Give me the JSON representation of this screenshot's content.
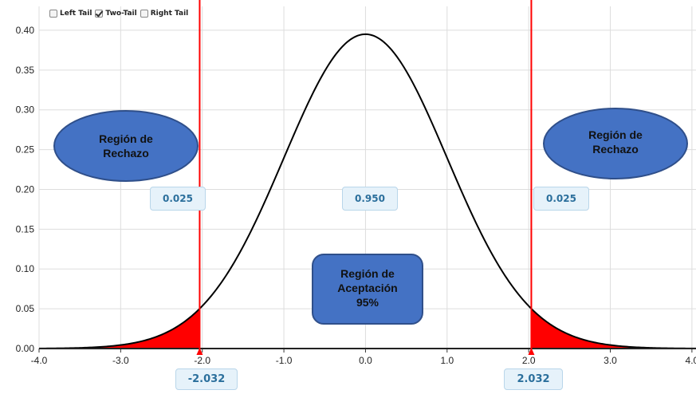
{
  "tail_options": [
    {
      "label": "Left Tail",
      "checked": false
    },
    {
      "label": "Two-Tail",
      "checked": true
    },
    {
      "label": "Right Tail",
      "checked": false
    }
  ],
  "chart_data": {
    "type": "area",
    "distribution": "standard normal (t-like) density",
    "x_ticks": [
      "-4.0",
      "-3.0",
      "-2.0",
      "-1.0",
      "0.0",
      "1.0",
      "2.0",
      "3.0",
      "4.0"
    ],
    "y_ticks": [
      "0.00",
      "0.05",
      "0.10",
      "0.15",
      "0.20",
      "0.25",
      "0.30",
      "0.35",
      "0.40"
    ],
    "xlim": [
      -4.0,
      4.05
    ],
    "ylim": [
      0,
      0.43
    ],
    "peak_value": 0.395,
    "critical_values": [
      -2.032,
      2.032
    ],
    "critical_labels": [
      "-2.032",
      "2.032"
    ],
    "area_labels": {
      "left_tail": "0.025",
      "center": "0.950",
      "right_tail": "0.025"
    },
    "grid": true,
    "colors": {
      "curve": "#000000",
      "tails": "#ff0000",
      "critical_line": "#ff0000",
      "grid": "#dddddd",
      "region_fill": "#4472c4",
      "region_border": "#2f4f8a"
    }
  },
  "regions": {
    "reject_left": [
      "Región de",
      "Rechazo"
    ],
    "reject_right": [
      "Región de",
      "Rechazo"
    ],
    "accept": [
      "Región de",
      "Aceptación",
      "95%"
    ]
  }
}
